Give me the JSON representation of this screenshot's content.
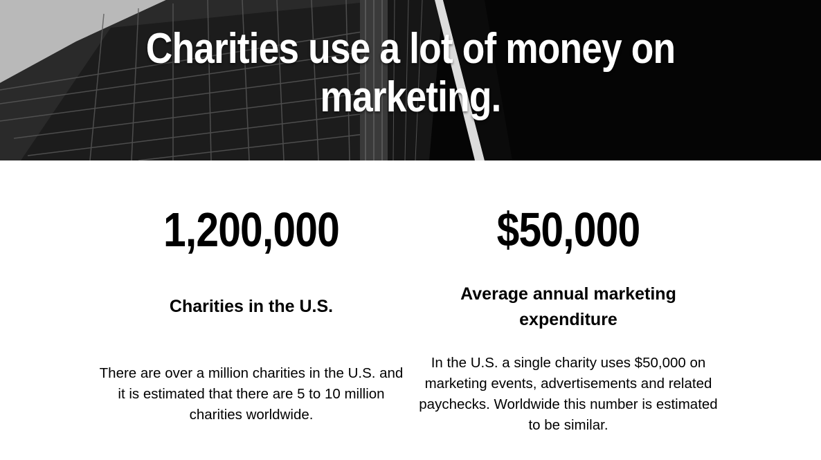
{
  "hero": {
    "title_line1": "Charities use a lot of money on",
    "title_line2": "marketing."
  },
  "stats": [
    {
      "value": "1,200,000",
      "label": "Charities in the U.S.",
      "description": "There are over a million charities in the U.S. and it is estimated that there are 5 to 10 million charities worldwide."
    },
    {
      "value": "$50,000",
      "label": "Average annual marketing expenditure",
      "description": "In the U.S. a single charity uses $50,000 on marketing events, advertisements and related paychecks. Worldwide this number is estimated to be similar."
    }
  ],
  "colors": {
    "hero_background": "#050505",
    "hero_text": "#ffffff",
    "body_background": "#ffffff",
    "body_text": "#000000"
  }
}
